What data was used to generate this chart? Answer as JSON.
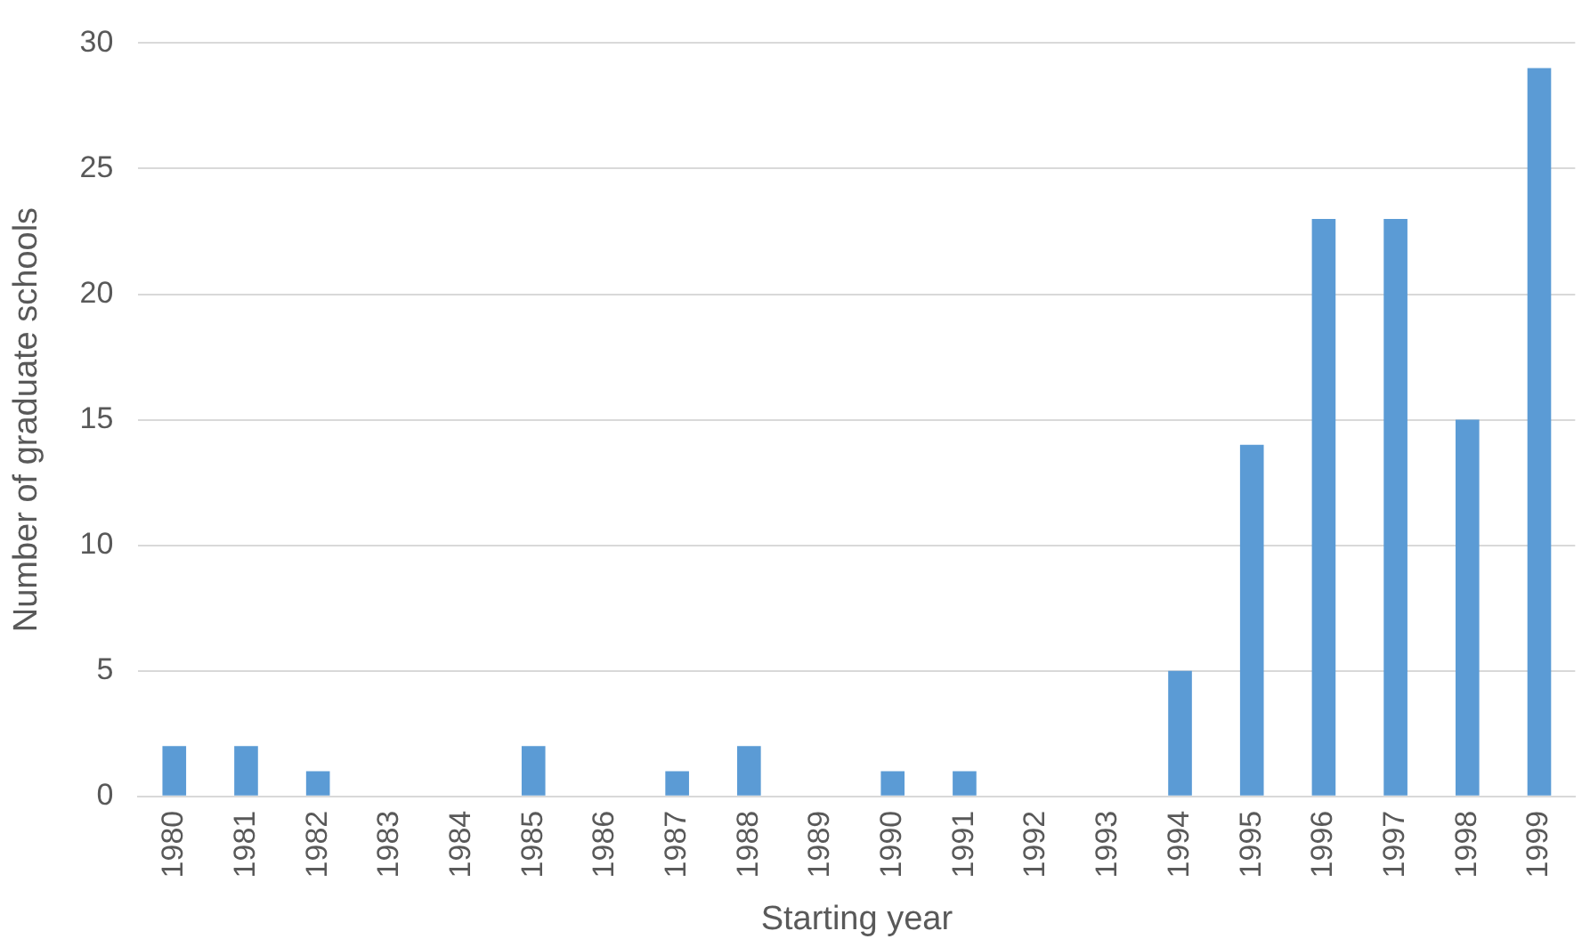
{
  "chart_data": {
    "type": "bar",
    "xlabel": "Starting year",
    "ylabel": "Number of graduate schools",
    "categories": [
      "1980",
      "1981",
      "1982",
      "1983",
      "1984",
      "1985",
      "1986",
      "1987",
      "1988",
      "1989",
      "1990",
      "1991",
      "1992",
      "1993",
      "1994",
      "1995",
      "1996",
      "1997",
      "1998",
      "1999"
    ],
    "values": [
      2,
      2,
      1,
      0,
      0,
      2,
      0,
      1,
      2,
      0,
      1,
      1,
      0,
      0,
      5,
      14,
      23,
      23,
      15,
      29
    ],
    "color": "#5b9bd5",
    "ylim": [
      0,
      30
    ],
    "yticks": [
      0,
      5,
      10,
      15,
      20,
      25,
      30
    ],
    "grid": "y",
    "legend": false
  }
}
